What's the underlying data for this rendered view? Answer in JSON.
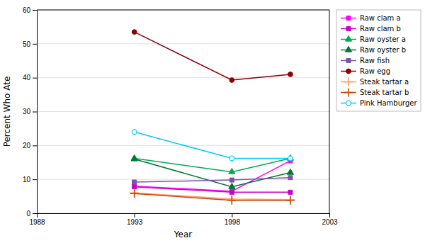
{
  "chart_data": {
    "type": "line",
    "xlabel": "Year",
    "ylabel": "Percent Who Ate",
    "x": [
      1993,
      1998,
      2001
    ],
    "xlim": [
      1988,
      2003
    ],
    "ylim": [
      0,
      60
    ],
    "xticks": [
      1988,
      1993,
      1998,
      2003
    ],
    "yticks": [
      0,
      10,
      20,
      30,
      40,
      50,
      60
    ],
    "grid": true,
    "legend": "right",
    "series": [
      {
        "name": "Raw clam a",
        "color": "#ff00ff",
        "marker": "square",
        "values": [
          8.0,
          6.5,
          15.5
        ]
      },
      {
        "name": "Raw clam b",
        "color": "#cc00cc",
        "marker": "square",
        "values": [
          7.8,
          6.2,
          6.2
        ]
      },
      {
        "name": "Raw oyster a",
        "color": "#00aa55",
        "marker": "triangle",
        "values": [
          16.2,
          12.2,
          16.2
        ]
      },
      {
        "name": "Raw oyster b",
        "color": "#007733",
        "marker": "triangle",
        "values": [
          16.0,
          7.8,
          12.0
        ]
      },
      {
        "name": "Raw fish",
        "color": "#7755aa",
        "marker": "square",
        "values": [
          9.2,
          9.8,
          10.5
        ]
      },
      {
        "name": "Raw egg",
        "color": "#8b0000",
        "marker": "circle",
        "values": [
          53.5,
          39.3,
          41.0
        ]
      },
      {
        "name": "Steak tartar a",
        "color": "#ff9966",
        "marker": "plus",
        "values": [
          6.0,
          4.2,
          4.0
        ]
      },
      {
        "name": "Steak tartar b",
        "color": "#cc4400",
        "marker": "plus",
        "values": [
          5.8,
          3.8,
          3.8
        ]
      },
      {
        "name": "Pink Hamburger",
        "color": "#00ccff",
        "marker": "circle-open",
        "values": [
          24.0,
          16.2,
          16.2
        ]
      }
    ]
  }
}
